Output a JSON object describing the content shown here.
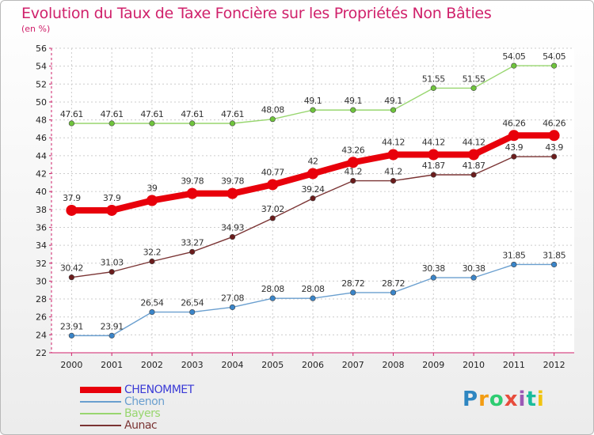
{
  "title": "Evolution du Taux de Taxe Foncière sur les Propriétés Non Bâties",
  "unit": "(en %)",
  "logo": {
    "letters": [
      "P",
      "r",
      "o",
      "x",
      "i",
      "t",
      "i"
    ],
    "colors": [
      "#2e86c1",
      "#f39c12",
      "#2ecc71",
      "#e74c3c",
      "#9b59b6",
      "#1abc9c",
      "#f1c40f"
    ]
  },
  "chart_data": {
    "type": "line",
    "x": [
      "2000",
      "2001",
      "2002",
      "2003",
      "2004",
      "2005",
      "2006",
      "2007",
      "2008",
      "2009",
      "2010",
      "2011",
      "2012"
    ],
    "ylim": [
      22,
      56
    ],
    "yticks": [
      "22",
      "24",
      "26",
      "28",
      "30",
      "32",
      "34",
      "36",
      "38",
      "40",
      "42",
      "44",
      "46",
      "48",
      "50",
      "52",
      "54",
      "56"
    ],
    "grid": true,
    "legend_position": "bottom-left",
    "series": [
      {
        "name": "CHENOMMET",
        "color": "#e8000b",
        "marker": "#e8000b",
        "label_color": "#333333",
        "values": [
          37.9,
          37.9,
          39,
          39.78,
          39.78,
          40.77,
          42,
          43.26,
          44.12,
          44.12,
          44.12,
          46.26,
          46.26
        ],
        "labels": [
          "37.9",
          "37.9",
          "39",
          "39.78",
          "39.78",
          "40.77",
          "42",
          "43.26",
          "44.12",
          "44.12",
          "44.12",
          "46.26",
          "46.26"
        ]
      },
      {
        "name": "Chenon",
        "color": "#6a9fcf",
        "marker": "#3a85c9",
        "label_color": "#333333",
        "values": [
          23.91,
          23.91,
          26.54,
          26.54,
          27.08,
          28.08,
          28.08,
          28.72,
          28.72,
          30.38,
          30.38,
          31.85,
          31.85
        ],
        "labels": [
          "23.91",
          "23.91",
          "26.54",
          "26.54",
          "27.08",
          "28.08",
          "28.08",
          "28.72",
          "28.72",
          "30.38",
          "30.38",
          "31.85",
          "31.85"
        ]
      },
      {
        "name": "Bayers",
        "color": "#98d66f",
        "marker": "#6fc43c",
        "label_color": "#333333",
        "values": [
          47.61,
          47.61,
          47.61,
          47.61,
          47.61,
          48.08,
          49.1,
          49.1,
          49.1,
          51.55,
          51.55,
          54.05,
          54.05
        ],
        "labels": [
          "47.61",
          "47.61",
          "47.61",
          "47.61",
          "47.61",
          "48.08",
          "49.1",
          "49.1",
          "49.1",
          "51.55",
          "51.55",
          "54.05",
          "54.05"
        ]
      },
      {
        "name": "Aunac",
        "color": "#7a3333",
        "marker": "#6b1c1c",
        "label_color": "#333333",
        "values": [
          30.42,
          31.03,
          32.2,
          33.27,
          34.93,
          37.02,
          39.24,
          41.2,
          41.2,
          41.87,
          41.87,
          43.9,
          43.9
        ],
        "labels": [
          "30.42",
          "31.03",
          "32.2",
          "33.27",
          "34.93",
          "37.02",
          "39.24",
          "41.2",
          "41.2",
          "41.87",
          "41.87",
          "43.9",
          "43.9"
        ]
      }
    ]
  }
}
